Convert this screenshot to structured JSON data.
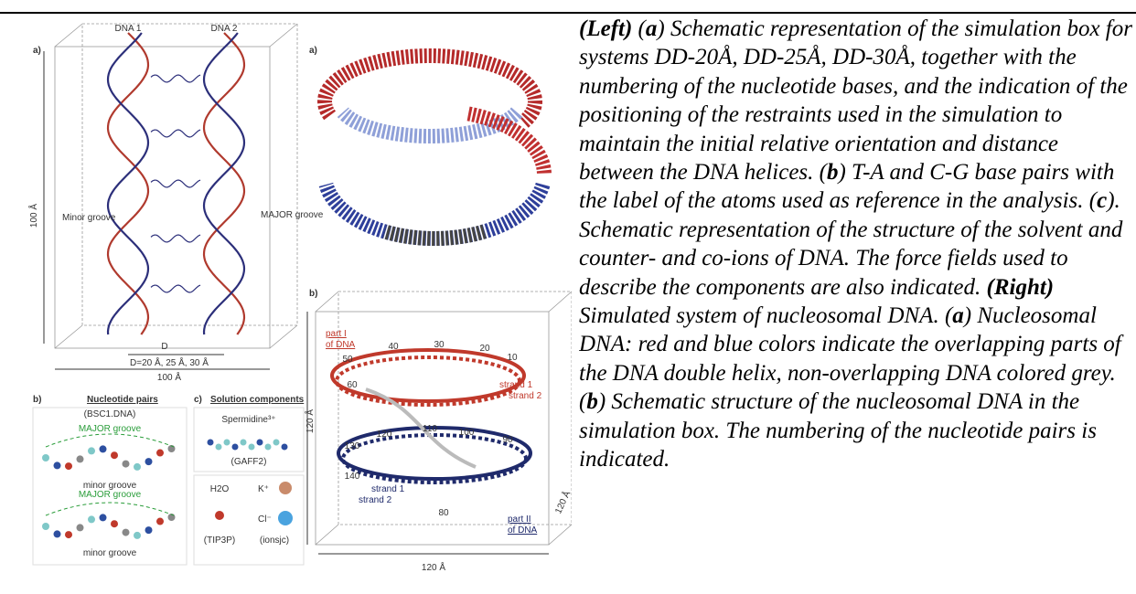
{
  "figure": {
    "left": {
      "panel_a": {
        "label": "a)",
        "dna1": "DNA 1",
        "dna2": "DNA 2",
        "minor_groove": "Minor groove",
        "major_groove": "MAJOR groove",
        "height": "100 Å",
        "width": "100 Å",
        "distance": "D",
        "distances": "D=20 Å, 25 Å, 30 Å"
      },
      "panel_b": {
        "label": "b)",
        "title": "Nucleotide pairs",
        "force_field": "(BSC1.DNA)",
        "major_groove": "MAJOR groove",
        "minor_groove": "minor groove"
      },
      "panel_c": {
        "label": "c)",
        "title": "Solution components",
        "spermidine": "Spermidine³⁺",
        "spermidine_ff": "(GAFF2)",
        "water": "H2O",
        "water_ff": "(TIP3P)",
        "potassium": "K⁺",
        "chloride": "Cl⁻",
        "ion_ff": "(ionsjc)"
      }
    },
    "right": {
      "panel_a": {
        "label": "a)"
      },
      "panel_b": {
        "label": "b)",
        "part1": "part I",
        "part1_of": "of DNA",
        "part2": "part II",
        "part2_of": "of DNA",
        "strand1": "strand 1",
        "strand2": "strand 2",
        "side": "120 Å",
        "numbers": [
          "10",
          "20",
          "30",
          "40",
          "50",
          "60",
          "80",
          "90",
          "100",
          "110",
          "120",
          "130",
          "140"
        ]
      }
    }
  },
  "caption": {
    "runs": [
      {
        "text": "(Left)",
        "bold": true
      },
      {
        "text": " (",
        "bold": false
      },
      {
        "text": "a",
        "bold": true
      },
      {
        "text": ") Schematic representation of the simulation box for systems DD-20Å, DD-25Å, DD-30Å, together with the numbering of the nucleotide bases, and the indication of the positioning of the restraints used in the simulation to maintain the initial relative orientation and distance between the DNA helices. (",
        "bold": false
      },
      {
        "text": "b",
        "bold": true
      },
      {
        "text": ") T-A and C-G base pairs with the label of the atoms used as reference in the analysis. (",
        "bold": false
      },
      {
        "text": "c",
        "bold": true
      },
      {
        "text": "). Schematic representation of the structure of the solvent and counter- and co-ions of DNA. The force fields used to describe the components are also indicated. ",
        "bold": false
      },
      {
        "text": "(Right)",
        "bold": true
      },
      {
        "text": " Simulated system of nucleosomal DNA. (",
        "bold": false
      },
      {
        "text": "a",
        "bold": true
      },
      {
        "text": ") Nucleosomal DNA: red and blue colors indicate the overlapping parts of the DNA double helix, non-overlapping DNA colored grey. (",
        "bold": false
      },
      {
        "text": "b",
        "bold": true
      },
      {
        "text": ") Schematic structure of the nucleosomal DNA in the simulation box. The numbering of the nucleotide pairs is indicated.",
        "bold": false
      }
    ]
  }
}
